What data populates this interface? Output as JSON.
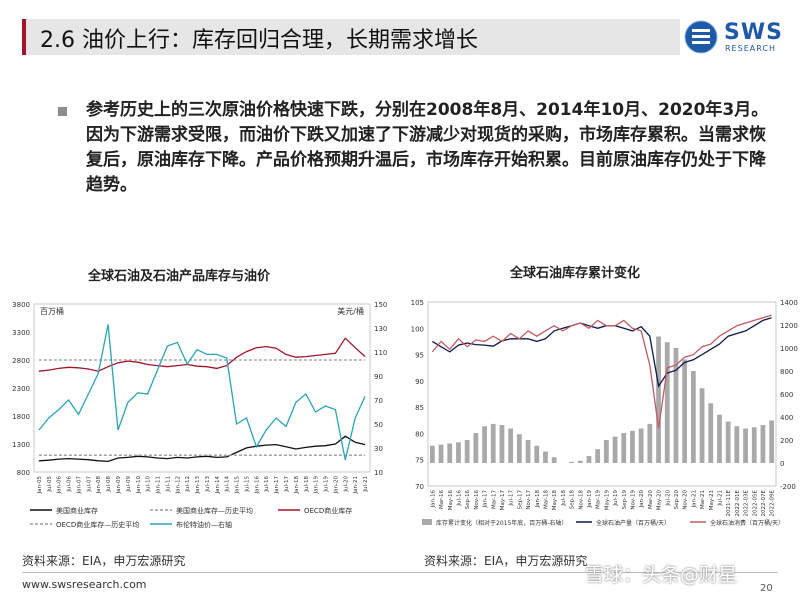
{
  "slide": {
    "title": "2.6 油价上行：库存回归合理，长期需求增长",
    "logo_text": "SWS",
    "logo_sub": "RESEARCH",
    "paragraph": "参考历史上的三次原油价格快速下跌，分别在2008年8月、2014年10月、2020年3月。因为下游需求受限，而油价下跌又加速了下游减少对现货的采购，市场库存累积。当需求恢复后，原油库存下降。产品价格预期升温后，市场库存开始积累。目前原油库存仍处于下降趋势。",
    "website": "www.swsresearch.com",
    "page_number": "20",
    "watermark": "雪球：头条@财星",
    "colors": {
      "brand_blue": "#1e5aa8",
      "accent_red": "#a5142a"
    }
  },
  "chart_data": [
    {
      "type": "line",
      "title": "全球石油及石油产品库存与油价",
      "left_unit": "百万桶",
      "right_unit": "美元/桶",
      "ylim_left": [
        800,
        3800
      ],
      "yticks_left": [
        800,
        1300,
        1800,
        2300,
        2800,
        3300,
        3800
      ],
      "ylim_right": [
        10,
        150
      ],
      "yticks_right": [
        10,
        30,
        50,
        70,
        90,
        110,
        130,
        150
      ],
      "x_ticks": [
        "Jan-05",
        "Jul-05",
        "Jan-06",
        "Jul-06",
        "Jan-07",
        "Jul-07",
        "Jan-08",
        "Jul-08",
        "Jan-09",
        "Jul-09",
        "Jan-10",
        "Jul-10",
        "Jan-11",
        "Jul-11",
        "Jan-12",
        "Jul-12",
        "Jan-13",
        "Jul-13",
        "Jan-14",
        "Jul-14",
        "Jan-15",
        "Jul-15",
        "Jan-16",
        "Jul-16",
        "Jan-17",
        "Jul-17",
        "Jan-18",
        "Jul-18",
        "Jan-19",
        "Jul-19",
        "Jan-20",
        "Jul-20",
        "Jan-21",
        "Jul-21"
      ],
      "series": [
        {
          "name": "美国商业库存",
          "axis": "left",
          "color": "#111111",
          "style": "solid",
          "values": [
            1000,
            1010,
            1030,
            1040,
            1030,
            1020,
            1000,
            990,
            1050,
            1060,
            1080,
            1070,
            1050,
            1040,
            1060,
            1050,
            1070,
            1080,
            1060,
            1070,
            1150,
            1230,
            1260,
            1280,
            1290,
            1250,
            1210,
            1240,
            1260,
            1270,
            1300,
            1440,
            1330,
            1290
          ]
        },
        {
          "name": "美国商业库存—历史平均",
          "axis": "left",
          "color": "#999999",
          "style": "dashed",
          "values": [
            1100,
            1100,
            1100,
            1100,
            1100,
            1100,
            1100,
            1100,
            1100,
            1100,
            1100,
            1100,
            1100,
            1100,
            1100,
            1100,
            1100,
            1100,
            1100,
            1100,
            1100,
            1100,
            1100,
            1100,
            1100,
            1100,
            1100,
            1100,
            1100,
            1100,
            1100,
            1100,
            1100,
            1100
          ]
        },
        {
          "name": "OECD商业库存",
          "axis": "left",
          "color": "#a5142a",
          "style": "solid",
          "values": [
            2600,
            2620,
            2650,
            2670,
            2660,
            2640,
            2600,
            2680,
            2750,
            2780,
            2760,
            2720,
            2700,
            2680,
            2700,
            2720,
            2690,
            2680,
            2650,
            2700,
            2850,
            2950,
            3020,
            3040,
            3010,
            2900,
            2850,
            2860,
            2880,
            2900,
            2920,
            3190,
            3020,
            2860
          ]
        },
        {
          "name": "OECD商业库存—历史平均",
          "axis": "left",
          "color": "#999999",
          "style": "dashed",
          "values": [
            2800,
            2800,
            2800,
            2800,
            2800,
            2800,
            2800,
            2800,
            2800,
            2800,
            2800,
            2800,
            2800,
            2800,
            2800,
            2800,
            2800,
            2800,
            2800,
            2800,
            2800,
            2800,
            2800,
            2800,
            2800,
            2800,
            2800,
            2800,
            2800,
            2800,
            2800,
            2800,
            2800,
            2800
          ]
        },
        {
          "name": "布伦特油价—右轴",
          "axis": "right",
          "color": "#2aa5b5",
          "style": "solid",
          "values": [
            45,
            55,
            62,
            70,
            58,
            75,
            92,
            133,
            45,
            68,
            76,
            75,
            95,
            115,
            118,
            100,
            112,
            108,
            108,
            105,
            50,
            55,
            31,
            45,
            55,
            48,
            68,
            75,
            60,
            65,
            62,
            20,
            55,
            73
          ]
        }
      ]
    },
    {
      "type": "bar",
      "title": "全球石油库存累计变化",
      "ylim_left": [
        70,
        105
      ],
      "yticks_left": [
        70,
        75,
        80,
        85,
        90,
        95,
        100,
        105
      ],
      "ylim_right": [
        -200,
        1400
      ],
      "yticks_right": [
        -200,
        0,
        200,
        400,
        600,
        800,
        1000,
        1200,
        1400
      ],
      "x_ticks": [
        "Jan-16",
        "Mar-16",
        "May-16",
        "Jul-16",
        "Sep-16",
        "Nov-16",
        "Jan-17",
        "Mar-17",
        "May-17",
        "Jul-17",
        "Sep-17",
        "Nov-17",
        "Jan-18",
        "Mar-18",
        "May-18",
        "Jul-18",
        "Sep-18",
        "Nov-18",
        "Jan-19",
        "Mar-19",
        "May-19",
        "Jul-19",
        "Sep-19",
        "Nov-19",
        "Jan-20",
        "Mar-20",
        "May-20",
        "Jul-20",
        "Sep-20",
        "Nov-20",
        "Jan-21",
        "Mar-21",
        "May-21",
        "Jul-21",
        "2021-11E",
        "2022-01E",
        "2022-03E",
        "2022-05E",
        "2022-07E",
        "2022-09E"
      ],
      "series": [
        {
          "name": "库存累计变化（相对于2015年底，百万桶-右轴）",
          "axis": "right",
          "color": "#a9a9a9",
          "values": [
            150,
            160,
            170,
            180,
            200,
            260,
            320,
            340,
            330,
            300,
            250,
            200,
            150,
            100,
            50,
            0,
            10,
            20,
            60,
            120,
            200,
            230,
            260,
            280,
            300,
            340,
            1100,
            1050,
            1000,
            900,
            800,
            650,
            520,
            420,
            360,
            320,
            300,
            310,
            330,
            370
          ]
        },
        {
          "name": "全球石油产量（百万桶/天）",
          "axis": "left",
          "color": "#0d1a4a",
          "style": "solid",
          "values": [
            97.5,
            96.5,
            95.5,
            96.8,
            97.2,
            96.9,
            96.8,
            96.6,
            97.6,
            98.0,
            98.0,
            98.0,
            97.5,
            98.0,
            99.5,
            100.0,
            100.5,
            101.0,
            100.5,
            100.0,
            100.5,
            100.5,
            100.0,
            99.5,
            100.3,
            98.5,
            89.0,
            91.5,
            92.0,
            93.5,
            94.0,
            95.0,
            96.0,
            97.0,
            98.5,
            99.0,
            99.5,
            100.5,
            101.5,
            102.0
          ]
        },
        {
          "name": "全球石油消费（百万桶/天）",
          "axis": "left",
          "color": "#c25a63",
          "style": "solid",
          "values": [
            95.5,
            97.5,
            96.0,
            98.0,
            96.5,
            97.8,
            97.5,
            98.5,
            97.5,
            99.0,
            98.0,
            99.5,
            98.5,
            99.5,
            100.5,
            99.5,
            100.5,
            101.0,
            100.0,
            101.5,
            100.5,
            100.5,
            101.5,
            100.0,
            99.5,
            93.0,
            81.0,
            92.5,
            93.0,
            94.5,
            95.0,
            96.5,
            97.0,
            98.5,
            99.5,
            100.5,
            101.0,
            101.5,
            102.0,
            102.5
          ]
        }
      ]
    }
  ],
  "labels": {
    "chart1_source": "资料来源：EIA，申万宏源研究",
    "chart2_source": "资料来源：EIA，申万宏源研究"
  }
}
